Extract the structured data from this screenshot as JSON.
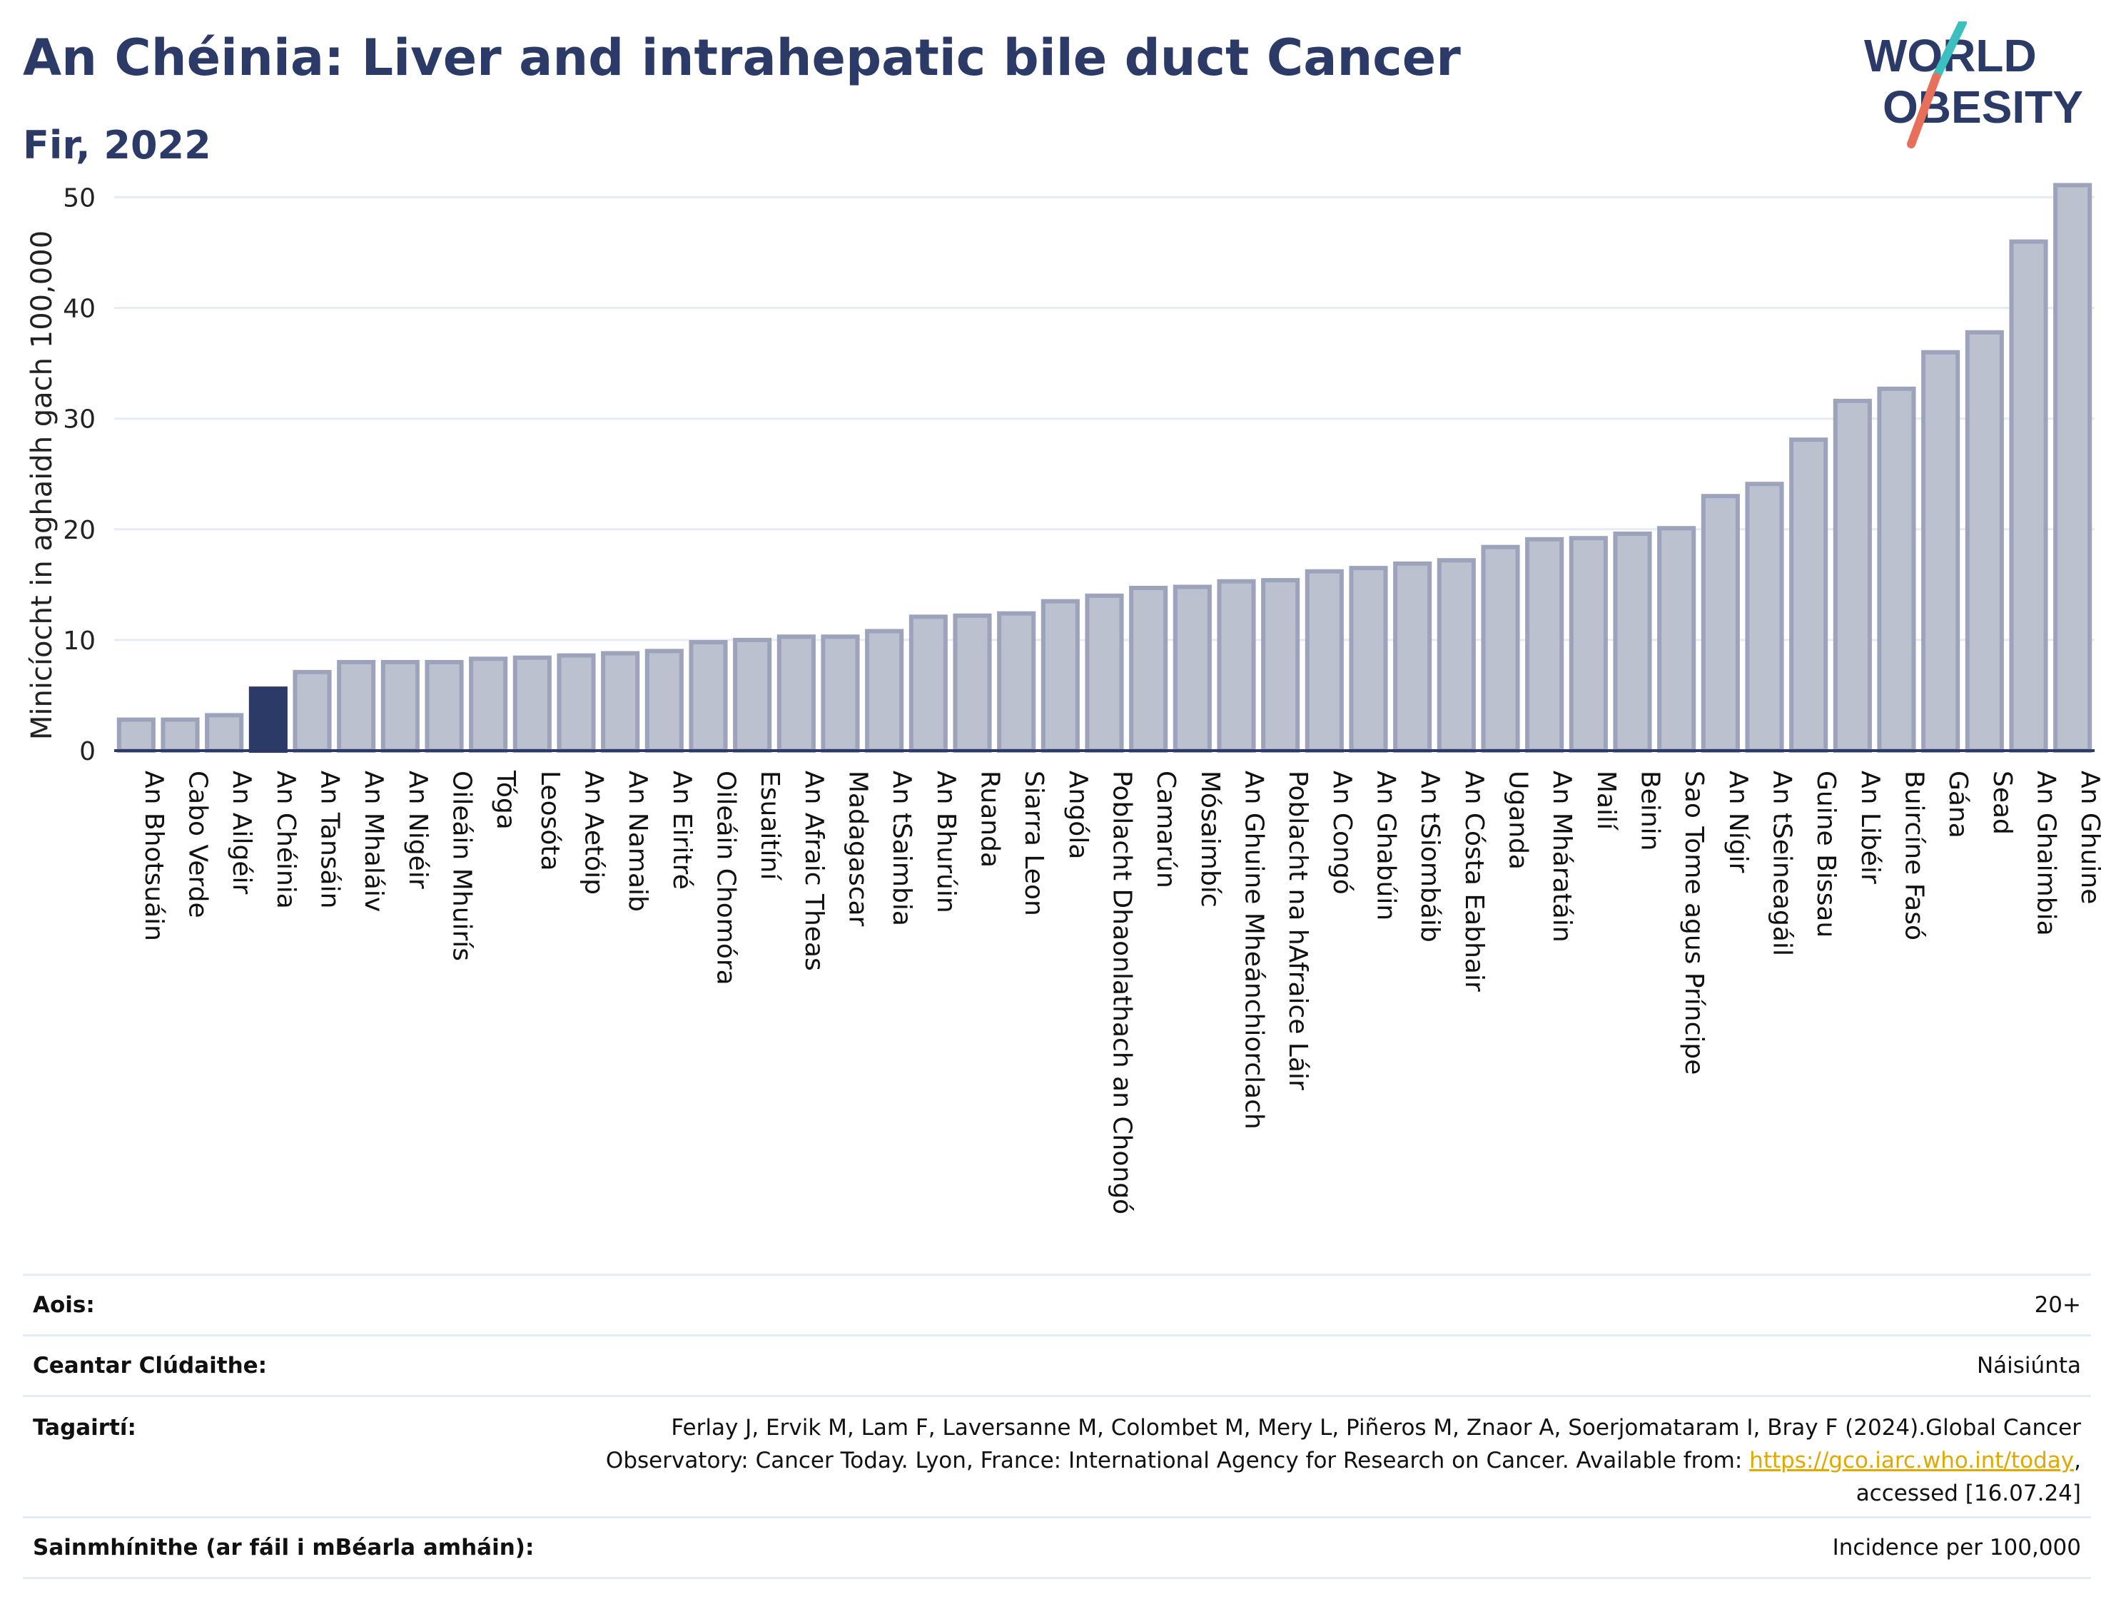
{
  "header": {
    "title": "An Chéinia: Liver and intrahepatic bile duct Cancer",
    "subtitle": "Fir, 2022"
  },
  "logo": {
    "line1": "WORLD",
    "line2": "OBESITY",
    "colors": {
      "text": "#2b3a67",
      "slash_top": "#3bbfbf",
      "slash_bottom": "#e8705a"
    }
  },
  "chart_data": {
    "type": "bar",
    "ylabel": "Minicíocht in aghaidh gach 100,000",
    "xlabel": "",
    "ylim": [
      0,
      53
    ],
    "yticks": [
      0,
      10,
      20,
      30,
      40,
      50
    ],
    "grid": true,
    "highlight": "An Chéinia",
    "colors": {
      "bar": "#bcc1d0",
      "bar_border": "#9ca3ba",
      "highlight": "#2b3a67",
      "grid": "#e6ecf3"
    },
    "categories": [
      "An Bhotsuáin",
      "Cabo Verde",
      "An Ailgéir",
      "An Chéinia",
      "An Tansáin",
      "An Mhaláiv",
      "An Nigéir",
      "Oileáin Mhuirís",
      "Tóga",
      "Leosóta",
      "An Aetóip",
      "An Namaib",
      "An Eiritré",
      "Oileáin Chomóra",
      "Esuaitíní",
      "An Afraic Theas",
      "Madagascar",
      "An tSaimbia",
      "An Bhurúin",
      "Ruanda",
      "Siarra Leon",
      "Angóla",
      "Poblacht Dhaonlathach an Chongó",
      "Camarún",
      "Mósaimbíc",
      "An Ghuine Mheánchiorclach",
      "Poblacht na hAfraice Láir",
      "An Congó",
      "An Ghabúin",
      "An tSiombáib",
      "An Cósta Eabhair",
      "Uganda",
      "An Mháratáin",
      "Mailí",
      "Beinin",
      "Sao Tome agus Príncipe",
      "An Nígir",
      "An tSeineagáil",
      "Guine Bissau",
      "An Libéir",
      "Buircíne Fasó",
      "Gána",
      "Sead",
      "An Ghaimbia",
      "An Ghuine"
    ],
    "values": [
      2.8,
      2.8,
      3.2,
      5.6,
      7.1,
      8.0,
      8.0,
      8.0,
      8.3,
      8.4,
      8.6,
      8.8,
      9.0,
      9.8,
      10.0,
      10.3,
      10.3,
      10.8,
      12.1,
      12.2,
      12.4,
      13.5,
      14.0,
      14.7,
      14.8,
      15.3,
      15.4,
      16.2,
      16.5,
      16.9,
      17.2,
      18.4,
      19.1,
      19.2,
      19.6,
      20.1,
      23.0,
      24.1,
      28.1,
      31.6,
      32.7,
      36.0,
      37.8,
      46.0,
      51.1
    ]
  },
  "info": {
    "age_label": "Aois:",
    "age_value": "20+",
    "area_label": "Ceantar Clúdaithe:",
    "area_value": "Náisiúnta",
    "ref_label": "Tagairtí:",
    "ref_line1": "Ferlay J, Ervik M, Lam F, Laversanne M, Colombet M, Mery L, Piñeros M, Znaor A, Soerjomataram I, Bray F (2024).Global Cancer",
    "ref_line2_prefix": "Observatory: Cancer Today. Lyon, France: International Agency for Research on Cancer. Available from: ",
    "ref_link": "https://gco.iarc.who.int/today",
    "ref_line2_suffix": ",",
    "ref_line3": "accessed [16.07.24]",
    "def_label": "Sainmhínithe (ar fáil i mBéarla amháin):",
    "def_value": "Incidence per 100,000"
  }
}
